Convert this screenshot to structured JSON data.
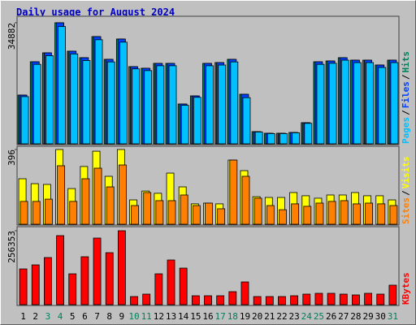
{
  "title": "Daily usage for August 2024",
  "legend_separator": "/",
  "chart_data": [
    {
      "type": "bar",
      "ylim": [
        0,
        34882
      ],
      "yticks": [
        34882
      ],
      "series": [
        {
          "name": "Pages",
          "color": "#00c0ff",
          "values": [
            13600,
            22900,
            25400,
            33800,
            25900,
            24000,
            30000,
            23600,
            29300,
            21600,
            21100,
            22500,
            22500,
            11100,
            13400,
            22500,
            22700,
            23600,
            13300,
            3400,
            2950,
            2950,
            3180,
            5900,
            22900,
            23200,
            24100,
            23400,
            23400,
            22000,
            23400
          ]
        },
        {
          "name": "Files",
          "color": "#0040ff",
          "values": [
            14046,
            23645,
            26220,
            34882,
            26688,
            24815,
            30902,
            24347,
            30200,
            22240,
            21772,
            23177,
            23177,
            11471,
            13812,
            23177,
            23411,
            24347,
            14280,
            3512,
            3043,
            3043,
            3277,
            6087,
            23645,
            23879,
            24815,
            24113,
            24113,
            22708,
            24113
          ]
        },
        {
          "name": "Hits",
          "color": "#00805c",
          "values": [
            14046,
            23645,
            26220,
            34882,
            26688,
            24815,
            30902,
            24347,
            30200,
            22240,
            21772,
            23177,
            23177,
            11471,
            13812,
            23177,
            23411,
            24347,
            14280,
            3512,
            3043,
            3043,
            3277,
            6087,
            23645,
            23879,
            24815,
            24113,
            24113,
            22708,
            24113
          ]
        }
      ]
    },
    {
      "type": "bar",
      "ylim": [
        0,
        396
      ],
      "yticks": [
        396
      ],
      "series": [
        {
          "name": "Sites",
          "color": "#ff8000",
          "values": [
            121,
            121,
            133,
            310,
            121,
            241,
            297,
            198,
            314,
            99,
            168,
            125,
            125,
            155,
            99,
            112,
            82,
            340,
            254,
            138,
            99,
            77,
            108,
            95,
            112,
            121,
            125,
            108,
            112,
            108,
            99
          ]
        },
        {
          "name": "Visits",
          "color": "#ffff00",
          "values": [
            241,
            215,
            211,
            396,
            189,
            306,
            387,
            254,
            396,
            129,
            176,
            164,
            271,
            198,
            108,
            112,
            108,
            340,
            284,
            146,
            142,
            142,
            168,
            151,
            138,
            155,
            155,
            168,
            151,
            151,
            129
          ]
        }
      ]
    },
    {
      "type": "bar",
      "ylim": [
        0,
        256353
      ],
      "yticks": [
        256353
      ],
      "categories": [
        "1",
        "2",
        "3",
        "4",
        "5",
        "6",
        "7",
        "8",
        "9",
        "10",
        "11",
        "12",
        "13",
        "14",
        "15",
        "16",
        "17",
        "18",
        "19",
        "20",
        "21",
        "22",
        "23",
        "24",
        "25",
        "26",
        "27",
        "28",
        "29",
        "30",
        "31"
      ],
      "category_colors": [
        "#000000",
        "#000000",
        "#00805c",
        "#00805c",
        "#000000",
        "#000000",
        "#000000",
        "#000000",
        "#000000",
        "#00805c",
        "#00805c",
        "#000000",
        "#000000",
        "#000000",
        "#000000",
        "#000000",
        "#00805c",
        "#00805c",
        "#000000",
        "#000000",
        "#000000",
        "#000000",
        "#000000",
        "#00805c",
        "#00805c",
        "#000000",
        "#000000",
        "#000000",
        "#000000",
        "#000000",
        "#00805c"
      ],
      "series": [
        {
          "name": "KBytes",
          "color": "#ff0000",
          "values": [
            123948,
            138033,
            163386,
            239445,
            107046,
            166203,
            230994,
            180288,
            256353,
            28170,
            36621,
            107046,
            154935,
            126765,
            30987,
            30987,
            30987,
            45072,
            78876,
            28170,
            28170,
            28170,
            30987,
            36621,
            39438,
            39438,
            36621,
            33804,
            39438,
            36621,
            67608
          ]
        }
      ]
    }
  ]
}
